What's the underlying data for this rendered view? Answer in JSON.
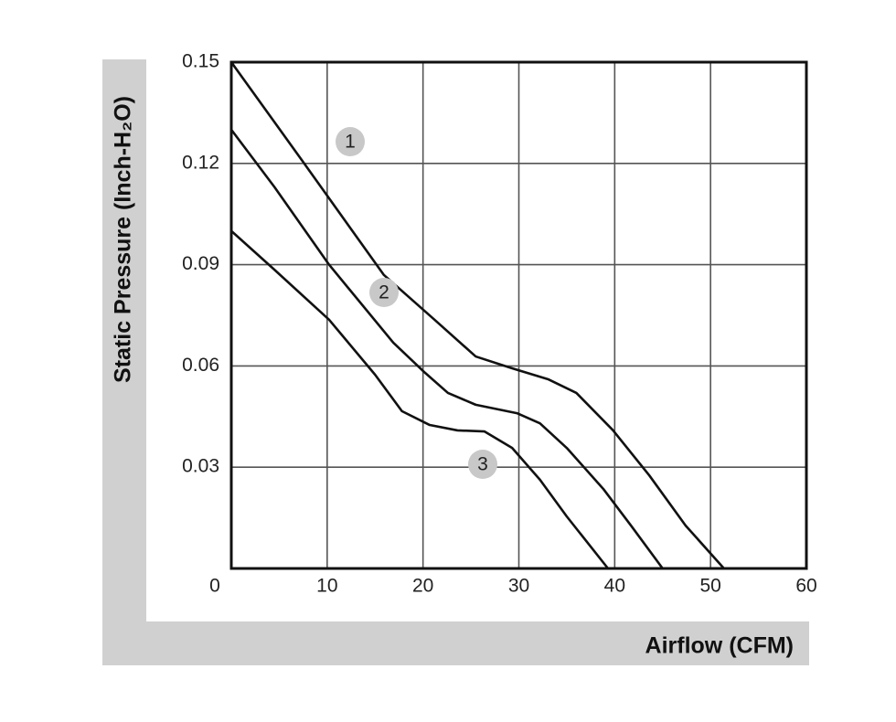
{
  "chart_data": {
    "type": "line",
    "x_label": "Airflow (CFM)",
    "y_label": "Static Pressure (Inch-H₂O)",
    "xlim": [
      0,
      60
    ],
    "ylim": [
      0,
      0.15
    ],
    "xticks": [
      0,
      10,
      20,
      30,
      40,
      50,
      60
    ],
    "yticks": [
      0.03,
      0.06,
      0.09,
      0.12,
      0.15
    ],
    "grid": true,
    "series": [
      {
        "name": "1",
        "color": "#111111",
        "x": [
          0,
          7.35,
          15.9,
          21.2,
          25.5,
          29.3,
          33.1,
          36,
          39.8,
          43.6,
          47.4,
          51.4
        ],
        "values": [
          0.15,
          0.121,
          0.087,
          0.0737,
          0.0628,
          0.0593,
          0.056,
          0.052,
          0.041,
          0.0276,
          0.0127,
          0
        ]
      },
      {
        "name": "2",
        "color": "#111111",
        "x": [
          0,
          4.5,
          10.2,
          16.9,
          20.2,
          22.6,
          25.5,
          29.8,
          32.2,
          35,
          38.8,
          41.7,
          45
        ],
        "values": [
          0.13,
          0.113,
          0.09,
          0.0669,
          0.058,
          0.052,
          0.0485,
          0.046,
          0.043,
          0.0357,
          0.0236,
          0.0127,
          0
        ]
      },
      {
        "name": "3",
        "color": "#111111",
        "x": [
          0,
          4.5,
          10.2,
          15,
          17.8,
          20.7,
          23.6,
          26.4,
          29.3,
          32.2,
          35,
          39.3
        ],
        "values": [
          0.1,
          0.0885,
          0.0737,
          0.0574,
          0.0466,
          0.0425,
          0.0409,
          0.0406,
          0.0357,
          0.0263,
          0.0154,
          0
        ]
      }
    ]
  }
}
